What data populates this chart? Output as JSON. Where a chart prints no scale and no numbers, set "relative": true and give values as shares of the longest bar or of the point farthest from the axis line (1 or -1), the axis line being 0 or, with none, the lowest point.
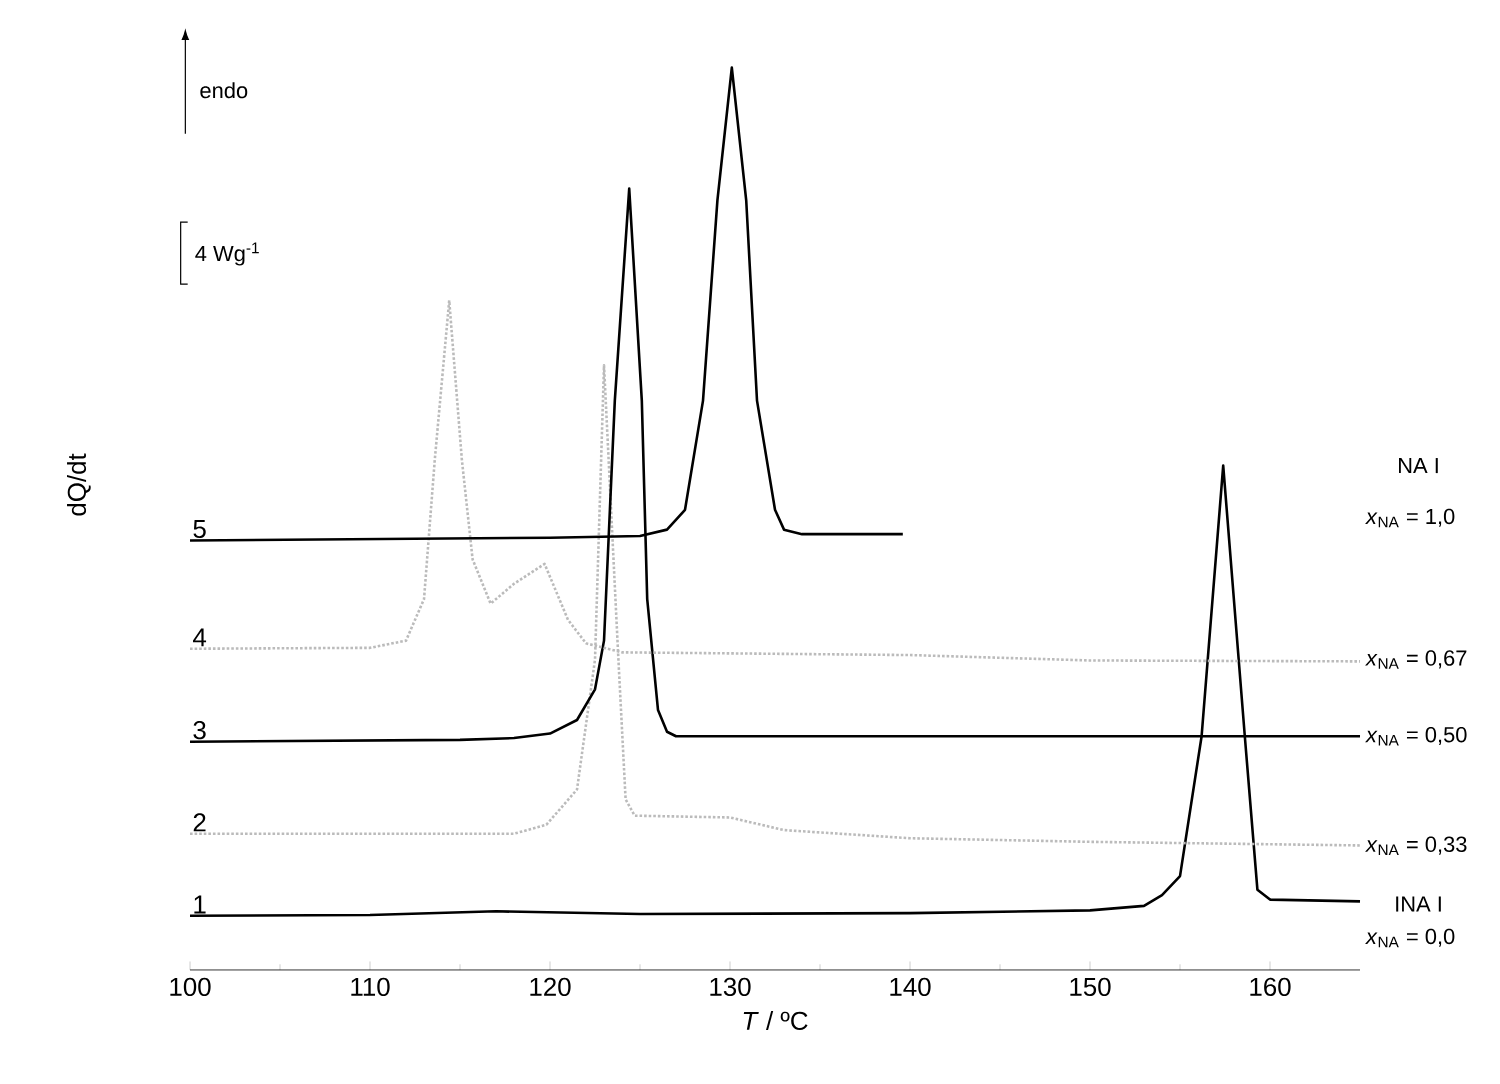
{
  "chart_data": {
    "type": "line",
    "relative": true,
    "xlabel": "*T* / ºC",
    "ylabel": "dQ/dt",
    "xlim": [
      100,
      165
    ],
    "xticks": [
      100,
      110,
      120,
      130,
      140,
      150,
      160
    ],
    "grid": false,
    "marker": "none",
    "series": [
      {
        "name": "1",
        "color": "#000000",
        "line_style": "solid",
        "x": [
          100,
          110,
          117,
          125,
          140,
          150,
          153,
          154,
          155,
          156.2,
          157.4,
          158.6,
          159.3,
          160,
          165
        ],
        "values": [
          0.06,
          0.061,
          0.065,
          0.062,
          0.063,
          0.066,
          0.071,
          0.083,
          0.104,
          0.259,
          0.559,
          0.259,
          0.089,
          0.078,
          0.076
        ]
      },
      {
        "name": "2",
        "color": "#bbbbbb",
        "line_style": "dotted",
        "x": [
          100,
          118,
          119.8,
          121.5,
          122.5,
          123,
          123.8,
          124.2,
          124.7,
          130,
          133,
          140,
          150,
          165
        ],
        "values": [
          0.151,
          0.151,
          0.161,
          0.2,
          0.344,
          0.67,
          0.344,
          0.189,
          0.171,
          0.169,
          0.155,
          0.146,
          0.142,
          0.138
        ]
      },
      {
        "name": "3",
        "color": "#000000",
        "line_style": "solid",
        "x": [
          100,
          115,
          118,
          120,
          121.5,
          122.5,
          123,
          123.6,
          124.4,
          125.1,
          125.4,
          126,
          126.5,
          127,
          165
        ],
        "values": [
          0.253,
          0.255,
          0.257,
          0.262,
          0.277,
          0.311,
          0.365,
          0.631,
          0.866,
          0.631,
          0.411,
          0.288,
          0.264,
          0.259,
          0.259
        ]
      },
      {
        "name": "4",
        "color": "#bbbbbb",
        "line_style": "dotted",
        "x": [
          100,
          110,
          112,
          113,
          113.6,
          114.4,
          115.1,
          115.7,
          116.7,
          118,
          119.7,
          121,
          122,
          124,
          140,
          150,
          165
        ],
        "values": [
          0.356,
          0.357,
          0.365,
          0.411,
          0.566,
          0.742,
          0.566,
          0.455,
          0.406,
          0.428,
          0.45,
          0.388,
          0.362,
          0.352,
          0.349,
          0.343,
          0.342
        ]
      },
      {
        "name": "5",
        "color": "#000000",
        "line_style": "solid",
        "x": [
          100,
          120,
          125,
          126.5,
          127.5,
          128.5,
          129.3,
          130.1,
          130.9,
          131.5,
          132.5,
          133,
          134,
          139.6
        ],
        "values": [
          0.476,
          0.479,
          0.481,
          0.488,
          0.51,
          0.631,
          0.853,
          1,
          0.853,
          0.631,
          0.51,
          0.488,
          0.483,
          0.483
        ]
      }
    ],
    "annotations": [
      "endo",
      "4 Wg$^{-1}$",
      "NA I",
      "*x*$_{NA}$ = 1,0",
      "*x*$_{NA}$ = 0,67",
      "*x*$_{NA}$ = 0,50",
      "*x*$_{NA}$ = 0,33",
      "INA I",
      "*x*$_{NA}$ = 0,0"
    ]
  }
}
